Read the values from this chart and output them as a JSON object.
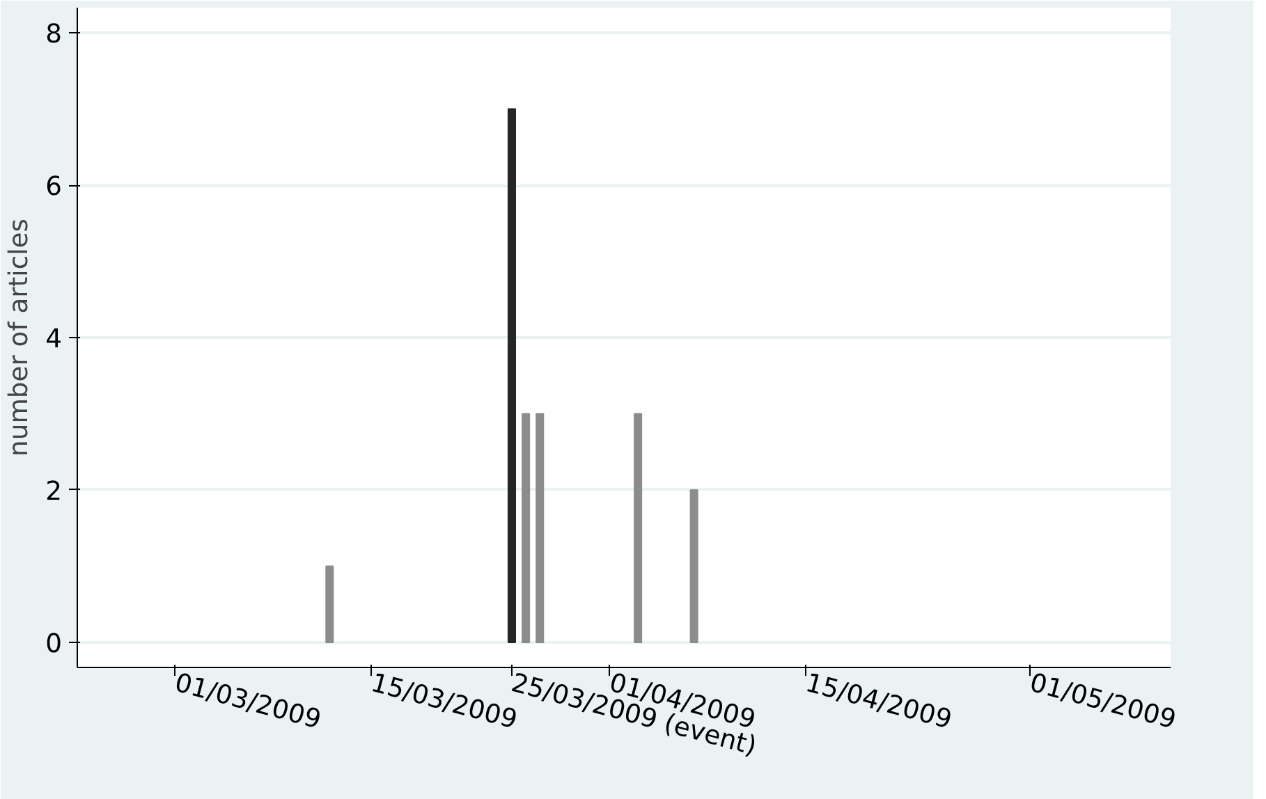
{
  "chart_data": {
    "type": "bar",
    "ylabel": "number of articles",
    "x": [
      "2009-03-12",
      "2009-03-25",
      "2009-03-26",
      "2009-03-27",
      "2009-04-03",
      "2009-04-07"
    ],
    "values": [
      1,
      7,
      3,
      3,
      3,
      2
    ],
    "colors": [
      "#8c8c8c",
      "#262626",
      "#8c8c8c",
      "#8c8c8c",
      "#8c8c8c",
      "#8c8c8c"
    ],
    "xlim": [
      "2009-02-22",
      "2009-05-11"
    ],
    "xticks": [
      {
        "value": "2009-03-01",
        "label": "01/03/2009"
      },
      {
        "value": "2009-03-15",
        "label": "15/03/2009"
      },
      {
        "value": "2009-03-25",
        "label": "25/03/2009 (event)"
      },
      {
        "value": "2009-04-01",
        "label": "01/04/2009"
      },
      {
        "value": "2009-04-15",
        "label": "15/04/2009"
      },
      {
        "value": "2009-05-01",
        "label": "01/05/2009"
      }
    ],
    "ylim": [
      -0.33,
      8.33
    ],
    "yticks": [
      0,
      2,
      4,
      6,
      8
    ],
    "grid": "y"
  }
}
